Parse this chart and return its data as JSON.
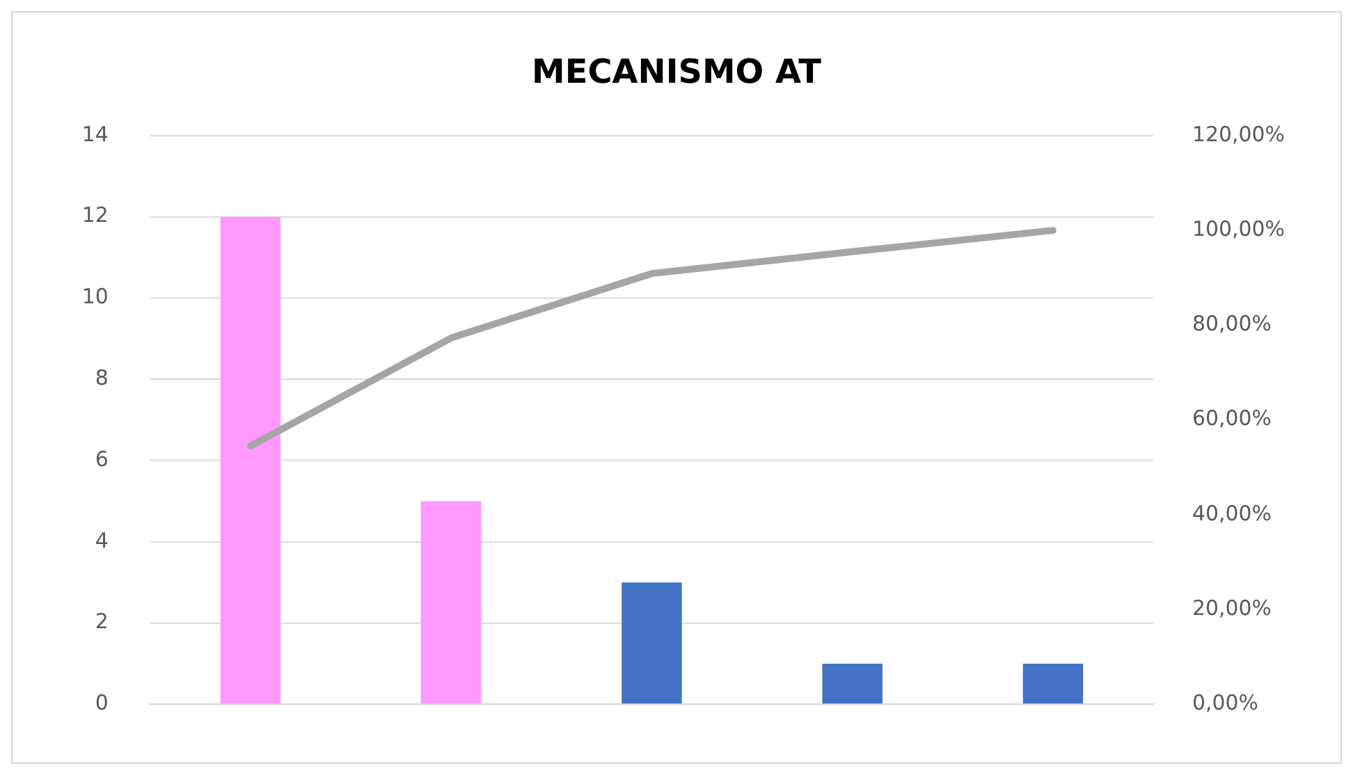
{
  "chart_data": {
    "type": "bar",
    "title": "MECANISMO AT",
    "categories": [
      null,
      null,
      null,
      null,
      null
    ],
    "series": [
      {
        "colors": [
          "#ff99ff",
          "#ff99ff",
          "#4472c4",
          "#4472c4",
          "#4472c4"
        ],
        "values": [
          12,
          5,
          3,
          1,
          1
        ]
      },
      {
        "type": "line",
        "axis": "y2",
        "color": "#a5a5a5",
        "values": [
          54.5,
          77.3,
          90.9,
          95.5,
          100
        ]
      }
    ],
    "ylim": [
      0,
      14
    ],
    "yticks": [
      0,
      2,
      4,
      6,
      8,
      10,
      12,
      14
    ],
    "y2lim": [
      0,
      120
    ],
    "y2ticks": [
      {
        "value": 0,
        "label": "0,00%"
      },
      {
        "value": 20,
        "label": "20,00%"
      },
      {
        "value": 40,
        "label": "40,00%"
      },
      {
        "value": 60,
        "label": "60,00%"
      },
      {
        "value": 80,
        "label": "80,00%"
      },
      {
        "value": 100,
        "label": "100,00%"
      },
      {
        "value": 120,
        "label": "120,00%"
      }
    ],
    "grid": "y",
    "legend": false,
    "marker": "none"
  }
}
